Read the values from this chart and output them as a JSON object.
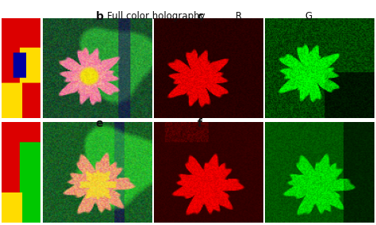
{
  "labels": {
    "b": "b",
    "c": "c",
    "e": "e",
    "f": "f",
    "R": "R",
    "G": "G"
  },
  "label_full_color": "Full color holography",
  "bg_color": "#ffffff",
  "label_color": "#111111",
  "label_fontsize": 10,
  "sublabel_fontsize": 8.5,
  "panel_a_top": {
    "regions": [
      {
        "color": [
          220,
          0,
          0
        ],
        "r0": 0,
        "r1": 100,
        "c0": 0,
        "c1": 60
      },
      {
        "color": [
          220,
          0,
          0
        ],
        "r0": 0,
        "r1": 45,
        "c0": 0,
        "c1": 35
      },
      {
        "color": [
          255,
          220,
          0
        ],
        "r0": 30,
        "r1": 70,
        "c0": 28,
        "c1": 60
      },
      {
        "color": [
          0,
          0,
          160
        ],
        "r0": 35,
        "r1": 60,
        "c0": 18,
        "c1": 38
      },
      {
        "color": [
          255,
          220,
          0
        ],
        "r0": 65,
        "r1": 100,
        "c0": 0,
        "c1": 60
      },
      {
        "color": [
          220,
          0,
          0
        ],
        "r0": 65,
        "r1": 100,
        "c0": 32,
        "c1": 60
      }
    ]
  },
  "panel_a_bot": {
    "regions": [
      {
        "color": [
          220,
          0,
          0
        ],
        "r0": 0,
        "r1": 100,
        "c0": 0,
        "c1": 60
      },
      {
        "color": [
          220,
          0,
          0
        ],
        "r0": 0,
        "r1": 50,
        "c0": 0,
        "c1": 35
      },
      {
        "color": [
          0,
          200,
          0
        ],
        "r0": 20,
        "r1": 75,
        "c0": 28,
        "c1": 60
      },
      {
        "color": [
          220,
          0,
          0
        ],
        "r0": 45,
        "r1": 75,
        "c0": 0,
        "c1": 28
      },
      {
        "color": [
          255,
          220,
          0
        ],
        "r0": 70,
        "r1": 100,
        "c0": 0,
        "c1": 38
      },
      {
        "color": [
          0,
          200,
          0
        ],
        "r0": 70,
        "r1": 100,
        "c0": 32,
        "c1": 60
      }
    ]
  }
}
